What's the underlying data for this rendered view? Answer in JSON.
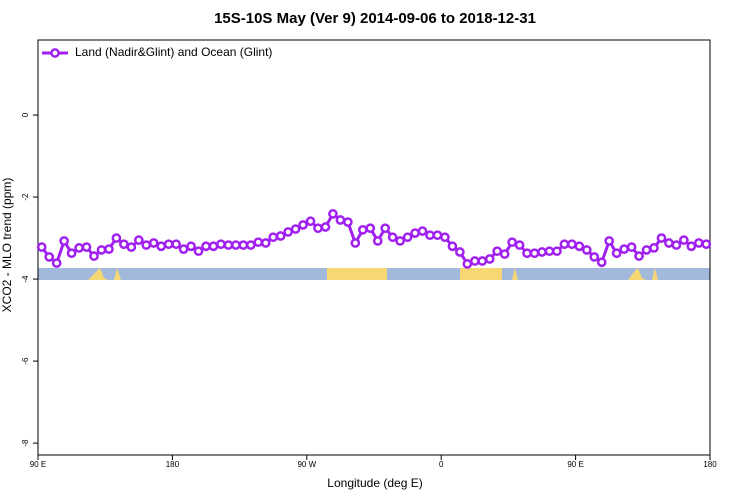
{
  "chart_data": {
    "type": "line",
    "title": "15S-10S May (Ver 9)   2014-09-06 to 2018-12-31",
    "x_label": "Longitude (deg E)",
    "y_label": "XCO2 - MLO trend (ppm)",
    "x": [
      92.5,
      97.5,
      102.5,
      107.5,
      112.5,
      117.5,
      122.5,
      127.5,
      132.5,
      137.5,
      142.5,
      147.5,
      152.5,
      157.5,
      162.5,
      167.5,
      172.5,
      177.5,
      182.5,
      187.5,
      192.5,
      197.5,
      202.5,
      207.5,
      212.5,
      217.5,
      222.5,
      227.5,
      232.5,
      237.5,
      242.5,
      247.5,
      252.5,
      257.5,
      262.5,
      267.5,
      272.5,
      277.5,
      282.5,
      287.5,
      292.5,
      297.5,
      302.5,
      307.5,
      312.5,
      317.5,
      322.5,
      327.5,
      332.5,
      337.5,
      342.5,
      347.5,
      352.5,
      357.5,
      362.5,
      367.5,
      372.5,
      377.5,
      382.5,
      387.5,
      392.5,
      397.5,
      402.5,
      407.5,
      412.5,
      417.5,
      422.5,
      427.5,
      432.5,
      437.5,
      442.5,
      447.5,
      452.5,
      457.5,
      462.5,
      467.5,
      472.5,
      477.5,
      482.5,
      487.5,
      492.5,
      497.5,
      502.5,
      507.5,
      512.5,
      517.5,
      522.5,
      527.5,
      532.5,
      537.5
    ],
    "series": [
      {
        "name": "Land (Nadir&Glint) and Ocean (Glint)",
        "color": "#a020f0",
        "values": [
          -3.22,
          -3.46,
          -3.61,
          -3.07,
          -3.37,
          -3.24,
          -3.22,
          -3.44,
          -3.29,
          -3.27,
          -3.0,
          -3.15,
          -3.22,
          -3.05,
          -3.17,
          -3.12,
          -3.2,
          -3.15,
          -3.15,
          -3.27,
          -3.2,
          -3.32,
          -3.2,
          -3.2,
          -3.15,
          -3.17,
          -3.17,
          -3.17,
          -3.17,
          -3.1,
          -3.12,
          -2.98,
          -2.95,
          -2.85,
          -2.78,
          -2.68,
          -2.59,
          -2.76,
          -2.73,
          -2.41,
          -2.56,
          -2.61,
          -3.12,
          -2.8,
          -2.76,
          -3.07,
          -2.76,
          -2.98,
          -3.07,
          -2.98,
          -2.88,
          -2.83,
          -2.93,
          -2.93,
          -2.98,
          -3.2,
          -3.34,
          -3.63,
          -3.56,
          -3.56,
          -3.51,
          -3.32,
          -3.39,
          -3.1,
          -3.17,
          -3.37,
          -3.37,
          -3.34,
          -3.32,
          -3.32,
          -3.15,
          -3.15,
          -3.2,
          -3.29,
          -3.46,
          -3.59,
          -3.07,
          -3.37,
          -3.27,
          -3.22,
          -3.44,
          -3.29,
          -3.24,
          -3.0,
          -3.12,
          -3.17,
          -3.05,
          -3.2,
          -3.12,
          -3.15
        ]
      }
    ],
    "xlim": [
      90,
      540
    ],
    "xticks": [
      {
        "value": 90,
        "label": "90 E"
      },
      180,
      {
        "value": 270,
        "label": "90 W"
      },
      {
        "value": 360,
        "label": "0"
      },
      {
        "value": 450,
        "label": "90 E"
      },
      {
        "value": 540,
        "label": "180"
      }
    ],
    "ylim": [
      -8.29,
      1.83
    ],
    "yticks": [
      0,
      -2,
      -4,
      -6,
      -8
    ],
    "legend": "top-left"
  }
}
